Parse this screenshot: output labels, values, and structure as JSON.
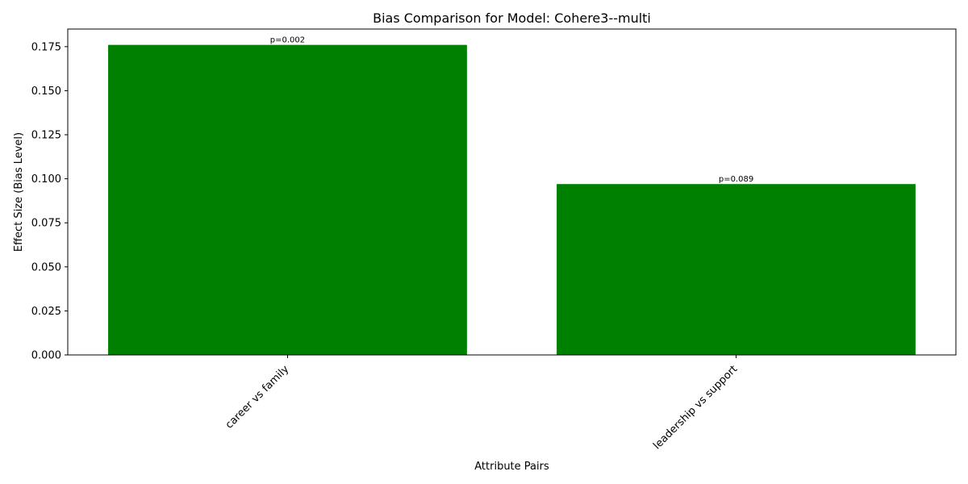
{
  "chart_data": {
    "type": "bar",
    "title": "Bias Comparison for Model: Cohere3--multi",
    "xlabel": "Attribute Pairs",
    "ylabel": "Effect Size (Bias Level)",
    "categories": [
      "career vs family",
      "leadership vs support"
    ],
    "values": [
      0.176,
      0.097
    ],
    "data_labels": [
      "p=0.002",
      "p=0.089"
    ],
    "ylim": [
      0,
      0.185
    ],
    "yticks": [
      0.0,
      0.025,
      0.05,
      0.075,
      0.1,
      0.125,
      0.15,
      0.175
    ],
    "ytick_labels": [
      "0.000",
      "0.025",
      "0.050",
      "0.075",
      "0.100",
      "0.125",
      "0.150",
      "0.175"
    ],
    "bar_color": "#008000",
    "grid": false,
    "legend": "none"
  }
}
